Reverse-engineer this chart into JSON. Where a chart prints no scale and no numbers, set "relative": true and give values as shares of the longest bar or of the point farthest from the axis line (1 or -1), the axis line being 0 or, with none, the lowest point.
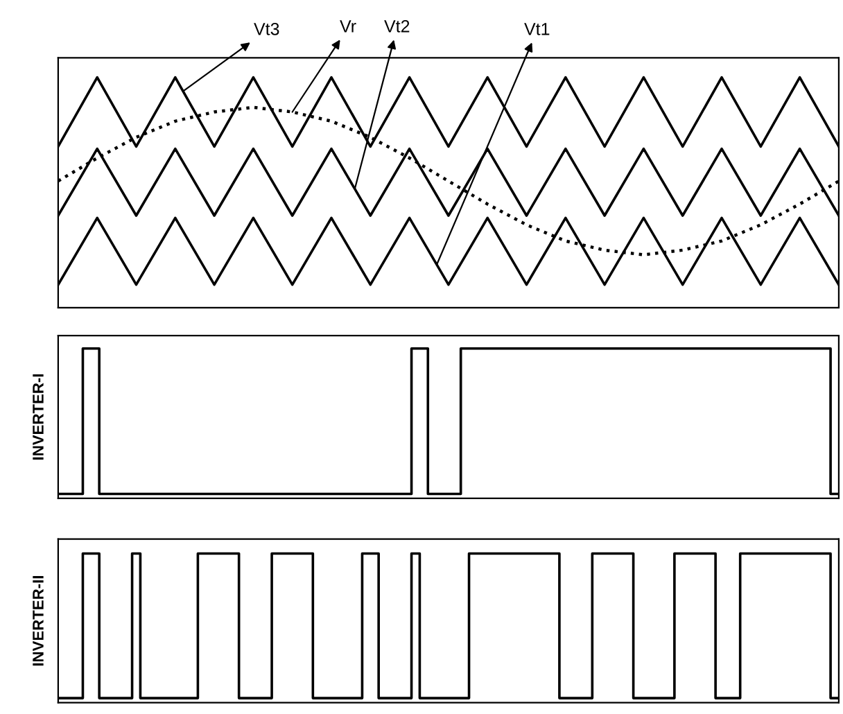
{
  "chart_data": [
    {
      "type": "line",
      "relative": true,
      "categories": [
        null,
        null,
        null,
        null,
        null,
        null,
        null,
        null,
        null,
        null,
        null,
        null,
        null,
        null,
        null,
        null,
        null,
        null,
        null,
        null,
        null
      ],
      "tick_labels": false,
      "legend": false,
      "marker": "none",
      "series": [
        {
          "name": "Vt3",
          "color": "#000000",
          "line_style": "solid",
          "values": [
            0.7,
            1,
            0.7,
            1,
            0.7,
            1,
            0.7,
            1,
            0.7,
            1,
            0.7,
            1,
            0.7,
            1,
            0.7,
            1,
            0.7,
            1,
            0.7,
            1,
            0.7
          ]
        },
        {
          "name": "Vr",
          "color": "#000000",
          "line_style": "dotted",
          "values": [
            0.55,
            0.65,
            0.74,
            0.81,
            0.85,
            0.87,
            0.85,
            0.81,
            0.74,
            0.65,
            0.55,
            0.45,
            0.36,
            0.29,
            0.25,
            0.23,
            0.25,
            0.29,
            0.36,
            0.45,
            0.55
          ]
        },
        {
          "name": "Vt2",
          "color": "#000000",
          "line_style": "solid",
          "values": [
            0.4,
            0.69,
            0.4,
            0.69,
            0.4,
            0.69,
            0.4,
            0.69,
            0.4,
            0.69,
            0.4,
            0.69,
            0.4,
            0.69,
            0.4,
            0.69,
            0.4,
            0.69,
            0.4,
            0.69,
            0.4
          ]
        },
        {
          "name": "Vt1",
          "color": "#000000",
          "line_style": "solid",
          "values": [
            0.1,
            0.39,
            0.1,
            0.39,
            0.1,
            0.39,
            0.1,
            0.39,
            0.1,
            0.39,
            0.1,
            0.39,
            0.1,
            0.39,
            0.1,
            0.39,
            0.1,
            0.39,
            0.1,
            0.39,
            0.1
          ]
        }
      ]
    },
    {
      "type": "step",
      "relative": true,
      "ylabel": "INVERTER-I",
      "tick_labels": false,
      "legend": false,
      "marker": "none",
      "line_style": "solid",
      "categories": [
        null,
        null,
        null,
        null,
        null,
        null,
        null,
        null,
        null,
        null,
        null,
        null,
        null,
        null,
        null,
        null,
        null,
        null,
        null,
        null,
        null,
        null,
        null,
        null,
        null,
        null,
        null,
        null,
        null,
        null,
        null,
        null,
        null,
        null,
        null,
        null,
        null,
        null,
        null,
        null,
        null,
        null,
        null,
        null,
        null,
        null,
        null,
        null,
        null,
        null,
        null,
        null,
        null,
        null,
        null,
        null,
        null,
        null,
        null,
        null,
        null,
        null,
        null,
        null,
        null,
        null,
        null,
        null,
        null,
        null,
        null,
        null,
        null,
        null,
        null,
        null,
        null,
        null,
        null,
        null,
        null,
        null,
        null,
        null,
        null,
        null,
        null,
        null,
        null,
        null,
        null,
        null,
        null,
        null,
        null,
        null
      ],
      "series": [
        {
          "color": "#000000",
          "values": [
            0.03,
            0.03,
            0.03,
            1,
            1,
            0.03,
            0.03,
            0.03,
            0.03,
            0.03,
            0.03,
            0.03,
            0.03,
            0.03,
            0.03,
            0.03,
            0.03,
            0.03,
            0.03,
            0.03,
            0.03,
            0.03,
            0.03,
            0.03,
            0.03,
            0.03,
            0.03,
            0.03,
            0.03,
            0.03,
            0.03,
            0.03,
            0.03,
            0.03,
            0.03,
            0.03,
            0.03,
            0.03,
            0.03,
            0.03,
            0.03,
            0.03,
            0.03,
            1,
            1,
            0.03,
            0.03,
            0.03,
            0.03,
            1,
            1,
            1,
            1,
            1,
            1,
            1,
            1,
            1,
            1,
            1,
            1,
            1,
            1,
            1,
            1,
            1,
            1,
            1,
            1,
            1,
            1,
            1,
            1,
            1,
            1,
            1,
            1,
            1,
            1,
            1,
            1,
            1,
            1,
            1,
            1,
            1,
            1,
            1,
            1,
            1,
            1,
            1,
            1,
            1,
            0.03,
            0.03
          ]
        }
      ]
    },
    {
      "type": "step",
      "relative": true,
      "ylabel": "INVERTER-II",
      "tick_labels": false,
      "legend": false,
      "marker": "none",
      "line_style": "solid",
      "categories": [
        null,
        null,
        null,
        null,
        null,
        null,
        null,
        null,
        null,
        null,
        null,
        null,
        null,
        null,
        null,
        null,
        null,
        null,
        null,
        null,
        null,
        null,
        null,
        null,
        null,
        null,
        null,
        null,
        null,
        null,
        null,
        null,
        null,
        null,
        null,
        null,
        null,
        null,
        null,
        null,
        null,
        null,
        null,
        null,
        null,
        null,
        null,
        null,
        null,
        null,
        null,
        null,
        null,
        null,
        null,
        null,
        null,
        null,
        null,
        null,
        null,
        null,
        null,
        null,
        null,
        null,
        null,
        null,
        null,
        null,
        null,
        null,
        null,
        null,
        null,
        null,
        null,
        null,
        null,
        null,
        null,
        null,
        null,
        null,
        null,
        null,
        null,
        null,
        null,
        null,
        null,
        null,
        null,
        null,
        null,
        null
      ],
      "series": [
        {
          "color": "#000000",
          "values": [
            0.03,
            0.03,
            0.03,
            1,
            1,
            0.03,
            0.03,
            0.03,
            0.03,
            1,
            0.03,
            0.03,
            0.03,
            0.03,
            0.03,
            0.03,
            0.03,
            1,
            1,
            1,
            1,
            1,
            0.03,
            0.03,
            0.03,
            0.03,
            1,
            1,
            1,
            1,
            1,
            0.03,
            0.03,
            0.03,
            0.03,
            0.03,
            0.03,
            1,
            1,
            0.03,
            0.03,
            0.03,
            0.03,
            1,
            0.03,
            0.03,
            0.03,
            0.03,
            0.03,
            0.03,
            1,
            1,
            1,
            1,
            1,
            1,
            1,
            1,
            1,
            1,
            1,
            0.03,
            0.03,
            0.03,
            0.03,
            1,
            1,
            1,
            1,
            1,
            0.03,
            0.03,
            0.03,
            0.03,
            0.03,
            1,
            1,
            1,
            1,
            1,
            0.03,
            0.03,
            0.03,
            1,
            1,
            1,
            1,
            1,
            1,
            1,
            1,
            1,
            1,
            1,
            0.03,
            0.03
          ]
        }
      ]
    }
  ]
}
